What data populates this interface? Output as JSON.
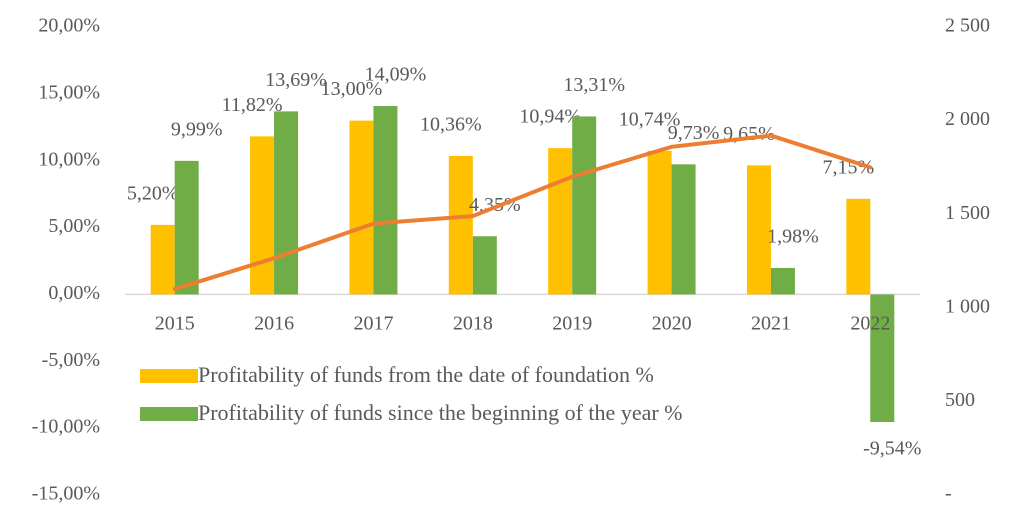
{
  "chart_data": {
    "type": "bar",
    "categories": [
      "2015",
      "2016",
      "2017",
      "2018",
      "2019",
      "2020",
      "2021",
      "2022"
    ],
    "series": [
      {
        "name": "Profitability of funds from the date of foundation %",
        "color": "#ffc000",
        "values": [
          5.2,
          11.82,
          13.0,
          10.36,
          10.94,
          10.74,
          9.65,
          7.15
        ],
        "value_labels": [
          "5,20%",
          "11,82%",
          "13,00%",
          "10,36%",
          "10,94%",
          "10,74%",
          "9,65%",
          "7,15%"
        ]
      },
      {
        "name": "Profitability of funds since the beginning of the year %",
        "color": "#70ad47",
        "values": [
          9.99,
          13.69,
          14.09,
          4.35,
          13.31,
          9.73,
          1.98,
          -9.54
        ],
        "value_labels": [
          "9,99%",
          "13,69%",
          "14,09%",
          "4,35%",
          "13,31%",
          "9,73%",
          "1,98%",
          "-9,54%"
        ]
      },
      {
        "type": "line",
        "axis": "y2",
        "color": "#ed7d31",
        "values": [
          1100,
          1265,
          1450,
          1490,
          1700,
          1860,
          1920,
          1750
        ]
      }
    ],
    "ylim": [
      -15,
      20
    ],
    "yticks": [
      {
        "value": -15,
        "label": "-15,00%"
      },
      {
        "value": -10,
        "label": "-10,00%"
      },
      {
        "value": -5,
        "label": "-5,00%"
      },
      {
        "value": 0,
        "label": "0,00%"
      },
      {
        "value": 5,
        "label": "5,00%"
      },
      {
        "value": 10,
        "label": "10,00%"
      },
      {
        "value": 15,
        "label": "15,00%"
      },
      {
        "value": 20,
        "label": "20,00%"
      }
    ],
    "y2lim": [
      0,
      2500
    ],
    "y2ticks": [
      {
        "value": 0,
        "label": "-"
      },
      500,
      {
        "value": 1000,
        "label": "1 000"
      },
      {
        "value": 1500,
        "label": "1 500"
      },
      {
        "value": 2000,
        "label": "2 000"
      },
      {
        "value": 2500,
        "label": "2 500"
      }
    ],
    "legend": "bottom",
    "grid": false
  }
}
